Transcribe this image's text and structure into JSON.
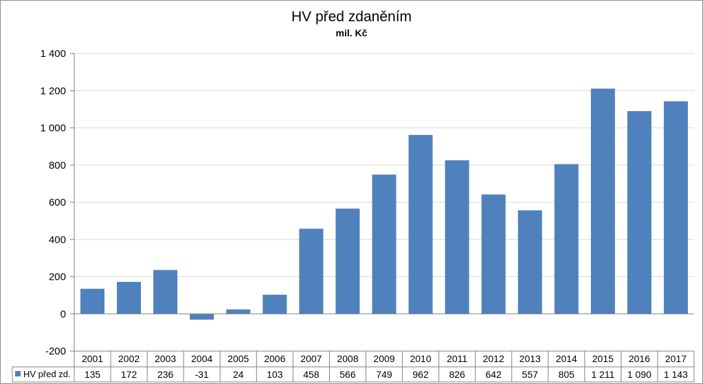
{
  "chart_data": {
    "type": "bar",
    "title": "HV před zdaněním",
    "subtitle": "mil. Kč",
    "categories": [
      "2001",
      "2002",
      "2003",
      "2004",
      "2005",
      "2006",
      "2007",
      "2008",
      "2009",
      "2010",
      "2011",
      "2012",
      "2013",
      "2014",
      "2015",
      "2016",
      "2017"
    ],
    "series": [
      {
        "name": "HV před zd.",
        "values": [
          135,
          172,
          236,
          -31,
          24,
          103,
          458,
          566,
          749,
          962,
          826,
          642,
          557,
          805,
          1211,
          1090,
          1143
        ],
        "labels": [
          "135",
          "172",
          "236",
          "-31",
          "24",
          "103",
          "458",
          "566",
          "749",
          "962",
          "826",
          "642",
          "557",
          "805",
          "1 211",
          "1 090",
          "1 143"
        ],
        "color": "#4f81bd"
      }
    ],
    "ylim": [
      -200,
      1400
    ],
    "yticks": [
      -200,
      0,
      200,
      400,
      600,
      800,
      1000,
      1200,
      1400
    ],
    "ytick_labels": [
      "-200",
      "0",
      "200",
      "400",
      "600",
      "800",
      "1 000",
      "1 200",
      "1 400"
    ],
    "grid": true,
    "legend": "data-table"
  }
}
